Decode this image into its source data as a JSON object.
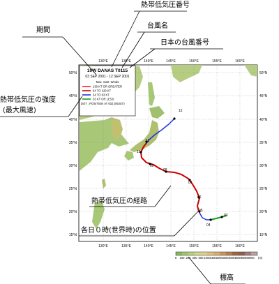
{
  "callouts": {
    "storm_number": "熱帯低気圧番号",
    "period": "期間",
    "name": "台風名",
    "japan_number": "日本の台風番号",
    "intensity_line1": "熱帯低気圧の強度",
    "intensity_line2": "(最大風速)",
    "track": "熱帯低気圧の経路",
    "daily_position": "各日０時(世界時)の位置",
    "elevation": "標高"
  },
  "legend_box": {
    "title": "19W DANAS T0115",
    "period": "03 SEP 2001 - 12 SEP 2001",
    "header": "Max. Sust. Winds",
    "items": [
      {
        "label": "130 KT OR GREATER",
        "color": "#ff2020"
      },
      {
        "label": "64 TO 129 KT",
        "color": "#cc0000"
      },
      {
        "label": "34 TO 63 KT",
        "color": "#2030e0"
      },
      {
        "label": "33 KT OR LESS",
        "color": "#10a020"
      }
    ],
    "footer": "DOT : POSITION AT 00Z (09JST)"
  },
  "axes": {
    "lon_labels": [
      "130°E",
      "135°E",
      "140°E",
      "145°E",
      "150°E",
      "155°E",
      "160°E"
    ],
    "lat_labels": [
      "50°N",
      "45°N",
      "40°N",
      "35°N",
      "30°N",
      "25°N",
      "20°N",
      "15°N"
    ]
  },
  "day_labels": [
    "03",
    "04",
    "05",
    "06",
    "07",
    "08",
    "09",
    "10",
    "11",
    "12"
  ],
  "colors": {
    "ocean": "#ffffff",
    "land_low": "#a8c878",
    "land_high": "#d8b070",
    "track_strong": "#cc0000",
    "track_medium": "#2030e0",
    "track_weak": "#10a020"
  },
  "colorbar": {
    "ticks": [
      "0",
      "100",
      "200",
      "300",
      "500",
      "1000",
      "1500",
      "2000",
      "3000",
      "4000",
      "5000",
      "6000",
      "8000"
    ],
    "unit": "(m)",
    "colors": [
      "#88b860",
      "#a0c870",
      "#b8d080",
      "#d0d890",
      "#e0d090",
      "#e0c080",
      "#d8b070",
      "#c89860",
      "#b88050",
      "#a06840",
      "#906050",
      "#a08080",
      "#c0a0a0"
    ]
  }
}
